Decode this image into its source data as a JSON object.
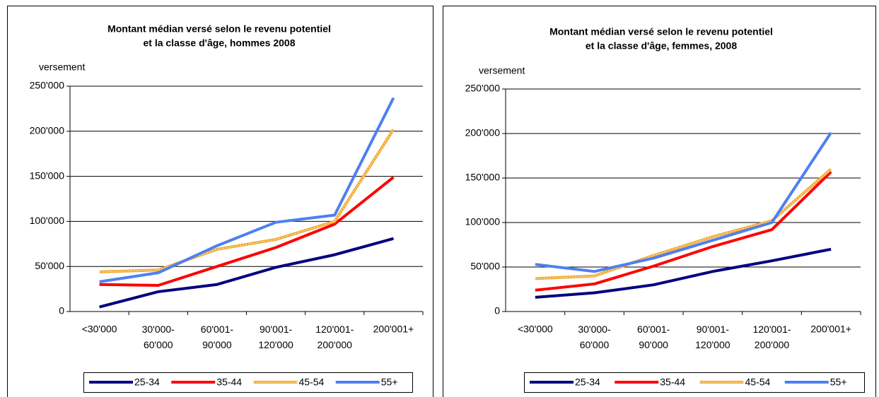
{
  "chart_data": [
    {
      "type": "line",
      "title": [
        "Montant médian versé selon le revenu potentiel",
        "et la classe d'âge, hommes 2008"
      ],
      "y_label": "versement",
      "categories": [
        "<30'000",
        "30'000-60'000",
        "60'001-90'000",
        "90'001-120'000",
        "120'001-200'000",
        "200'001+"
      ],
      "ylim": [
        0,
        250000
      ],
      "yticks": [
        0,
        {
          "value": 50000,
          "label": "50'000"
        },
        {
          "value": 100000,
          "label": "100'000"
        },
        {
          "value": 150000,
          "label": "150'000"
        },
        {
          "value": 200000,
          "label": "200'000"
        },
        {
          "value": 250000,
          "label": "250'000"
        }
      ],
      "grid": true,
      "series": [
        {
          "name": "25-34",
          "color": "#000080",
          "values": [
            5000,
            22000,
            30000,
            49000,
            63000,
            81000
          ]
        },
        {
          "name": "35-44",
          "color": "#ff0000",
          "values": [
            30000,
            29000,
            50000,
            71000,
            97000,
            149000
          ]
        },
        {
          "name": "45-54",
          "color": "#f0a830",
          "values": [
            44000,
            46000,
            69000,
            80000,
            100000,
            202000
          ]
        },
        {
          "name": "55+",
          "color": "#4f7ff0",
          "values": [
            33000,
            43000,
            73000,
            99000,
            107000,
            237000
          ]
        }
      ]
    },
    {
      "type": "line",
      "title": [
        "Montant médian versé selon le revenu potentiel",
        "et la classe d'âge, femmes, 2008"
      ],
      "y_label": "versement",
      "categories": [
        "<30'000",
        "30'000-60'000",
        "60'001-90'000",
        "90'001-120'000",
        "120'001-200'000",
        "200'001+"
      ],
      "ylim": [
        0,
        250000
      ],
      "yticks": [
        0,
        {
          "value": 50000,
          "label": "50'000"
        },
        {
          "value": 100000,
          "label": "100'000"
        },
        {
          "value": 150000,
          "label": "150'000"
        },
        {
          "value": 200000,
          "label": "200'000"
        },
        {
          "value": 250000,
          "label": "250'000"
        }
      ],
      "grid": true,
      "series": [
        {
          "name": "25-34",
          "color": "#000080",
          "values": [
            16000,
            21000,
            30000,
            45000,
            57000,
            70000
          ]
        },
        {
          "name": "35-44",
          "color": "#ff0000",
          "values": [
            24000,
            31000,
            51000,
            73000,
            92000,
            157000
          ]
        },
        {
          "name": "45-54",
          "color": "#f0a830",
          "values": [
            37000,
            40000,
            63000,
            84000,
            102000,
            160000
          ]
        },
        {
          "name": "55+",
          "color": "#4f7ff0",
          "values": [
            53000,
            45000,
            60000,
            80000,
            100000,
            201000
          ]
        }
      ]
    }
  ]
}
